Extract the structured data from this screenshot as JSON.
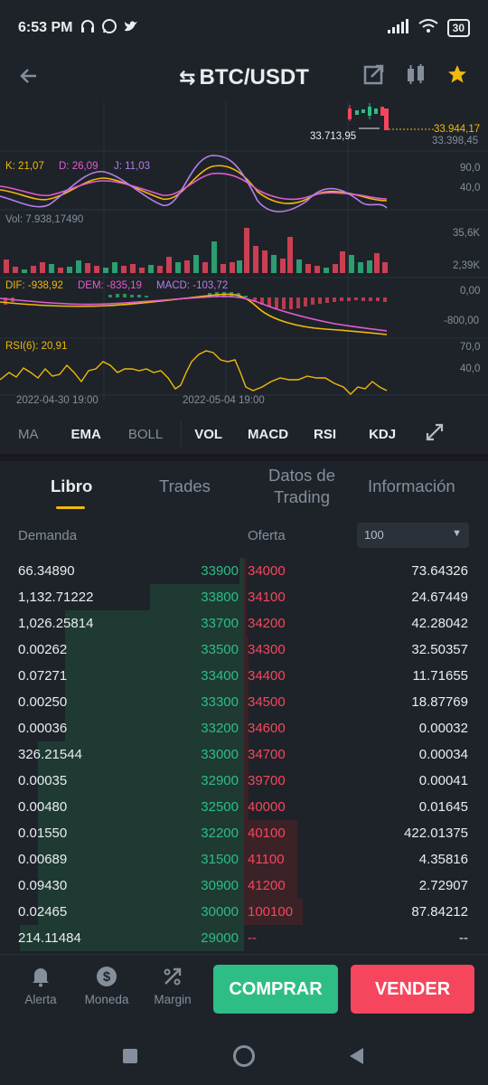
{
  "status": {
    "time": "6:53 PM",
    "battery": "30"
  },
  "header": {
    "pair": "BTC/USDT"
  },
  "chart": {
    "price_high_label": "33.944,17",
    "price_low_label": "33.713,95",
    "price_below_label": "33.398,45",
    "kdj": {
      "k": "K: 21,07",
      "d": "D: 26,09",
      "j": "J: 11,03",
      "axis_top": "90,0",
      "axis_mid": "40,0"
    },
    "vol": {
      "label": "Vol: 7.938,17490",
      "axis_top": "35,6K",
      "axis_bottom": "2,39K"
    },
    "macd": {
      "dif": "DIF: -938,92",
      "dem": "DEM: -835,19",
      "macd": "MACD: -103,72",
      "axis_top": "0,00",
      "axis_bottom": "-800,00"
    },
    "rsi": {
      "label": "RSI(6): 20,91",
      "axis_top": "70,0",
      "axis_mid": "40,0"
    },
    "dates": [
      "2022-04-30 19:00",
      "2022-05-04 19:00"
    ]
  },
  "indicators": [
    "MA",
    "EMA",
    "BOLL",
    "VOL",
    "MACD",
    "RSI",
    "KDJ"
  ],
  "tabs": [
    "Libro",
    "Trades",
    "Datos de Trading",
    "Información"
  ],
  "orderbook": {
    "demand_label": "Demanda",
    "offer_label": "Oferta",
    "depth_select": "100",
    "rows": [
      {
        "bid_qty": "66.34890",
        "bid_price": "33900",
        "ask_price": "34000",
        "ask_qty": "73.64326",
        "bid_depth": 0.02,
        "ask_depth": 0.01
      },
      {
        "bid_qty": "1,132.71222",
        "bid_price": "33800",
        "ask_price": "34100",
        "ask_qty": "24.67449",
        "bid_depth": 0.42,
        "ask_depth": 0.01
      },
      {
        "bid_qty": "1,026.25814",
        "bid_price": "33700",
        "ask_price": "34200",
        "ask_qty": "42.28042",
        "bid_depth": 0.8,
        "ask_depth": 0.01
      },
      {
        "bid_qty": "0.00262",
        "bid_price": "33500",
        "ask_price": "34300",
        "ask_qty": "32.50357",
        "bid_depth": 0.8,
        "ask_depth": 0.02
      },
      {
        "bid_qty": "0.07271",
        "bid_price": "33400",
        "ask_price": "34400",
        "ask_qty": "11.71655",
        "bid_depth": 0.8,
        "ask_depth": 0.02
      },
      {
        "bid_qty": "0.00250",
        "bid_price": "33300",
        "ask_price": "34500",
        "ask_qty": "18.87769",
        "bid_depth": 0.8,
        "ask_depth": 0.02
      },
      {
        "bid_qty": "0.00036",
        "bid_price": "33200",
        "ask_price": "34600",
        "ask_qty": "0.00032",
        "bid_depth": 0.8,
        "ask_depth": 0.02
      },
      {
        "bid_qty": "326.21544",
        "bid_price": "33000",
        "ask_price": "34700",
        "ask_qty": "0.00034",
        "bid_depth": 0.92,
        "ask_depth": 0.02
      },
      {
        "bid_qty": "0.00035",
        "bid_price": "32900",
        "ask_price": "39700",
        "ask_qty": "0.00041",
        "bid_depth": 0.92,
        "ask_depth": 0.02
      },
      {
        "bid_qty": "0.00480",
        "bid_price": "32500",
        "ask_price": "40000",
        "ask_qty": "0.01645",
        "bid_depth": 0.92,
        "ask_depth": 0.02
      },
      {
        "bid_qty": "0.01550",
        "bid_price": "32200",
        "ask_price": "40100",
        "ask_qty": "422.01375",
        "bid_depth": 0.92,
        "ask_depth": 0.22
      },
      {
        "bid_qty": "0.00689",
        "bid_price": "31500",
        "ask_price": "41100",
        "ask_qty": "4.35816",
        "bid_depth": 0.92,
        "ask_depth": 0.22
      },
      {
        "bid_qty": "0.09430",
        "bid_price": "30900",
        "ask_price": "41200",
        "ask_qty": "2.72907",
        "bid_depth": 0.92,
        "ask_depth": 0.22
      },
      {
        "bid_qty": "0.02465",
        "bid_price": "30000",
        "ask_price": "100100",
        "ask_qty": "87.84212",
        "bid_depth": 0.92,
        "ask_depth": 0.24
      },
      {
        "bid_qty": "214.11484",
        "bid_price": "29000",
        "ask_price": "--",
        "ask_qty": "--",
        "bid_depth": 1.0,
        "ask_depth": 0.0
      }
    ]
  },
  "bottom_nav": {
    "alerta": "Alerta",
    "moneda": "Moneda",
    "margin": "Margin",
    "buy": "COMPRAR",
    "sell": "VENDER"
  },
  "colors": {
    "green": "#2ebd85",
    "red": "#f6465d",
    "yellow": "#f0b90b",
    "purple": "#b67ee9",
    "pink": "#e05cd0"
  }
}
